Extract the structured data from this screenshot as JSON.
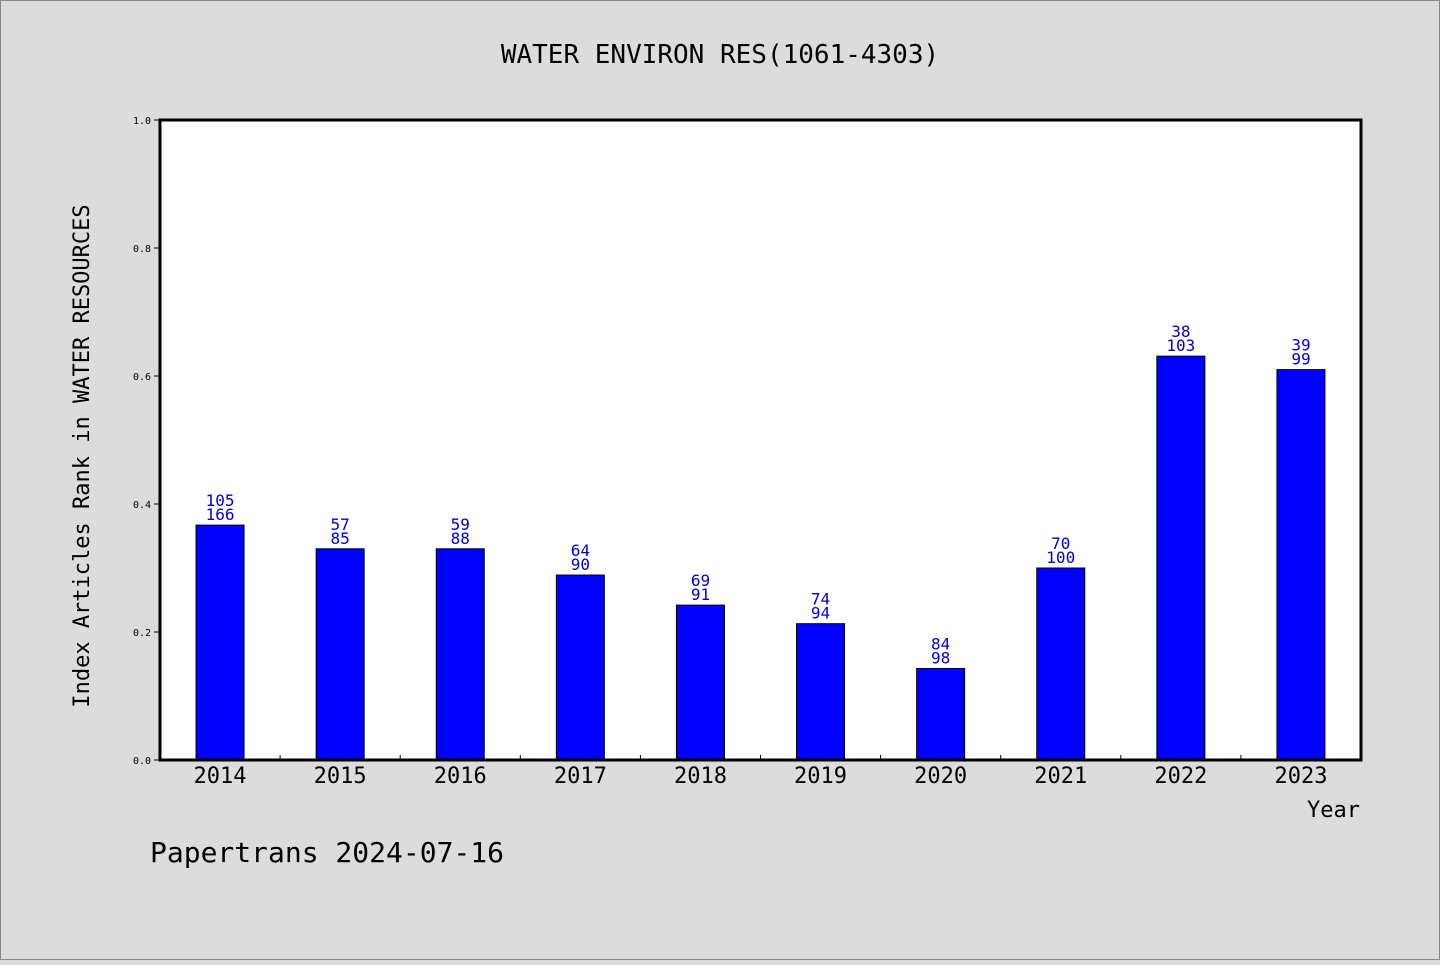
{
  "title": "WATER ENVIRON RES(1061-4303)",
  "footer": "Papertrans 2024-07-16",
  "colors": {
    "background": "#dcdcdc",
    "plot_bg": "#ffffff",
    "bar": "#0000ff",
    "label": "#0000cc"
  },
  "chart_data": {
    "type": "bar",
    "title": "WATER ENVIRON RES(1061-4303)",
    "xlabel": "Year",
    "ylabel": "Index Articles Rank in WATER RESOURCES",
    "ylim": [
      0,
      1.0
    ],
    "yticks": [
      "0.0",
      "0.2",
      "0.4",
      "0.6",
      "0.8",
      "1.0"
    ],
    "categories": [
      "2014",
      "2015",
      "2016",
      "2017",
      "2018",
      "2019",
      "2020",
      "2021",
      "2022",
      "2023"
    ],
    "values": [
      0.367,
      0.33,
      0.33,
      0.289,
      0.242,
      0.213,
      0.143,
      0.3,
      0.631,
      0.61
    ],
    "rank_labels": [
      "105",
      "57",
      "59",
      "64",
      "69",
      "74",
      "84",
      "70",
      "38",
      "39"
    ],
    "total_labels": [
      "166",
      "85",
      "88",
      "90",
      "91",
      "94",
      "98",
      "100",
      "103",
      "99"
    ],
    "grid": false,
    "legend": "none"
  }
}
